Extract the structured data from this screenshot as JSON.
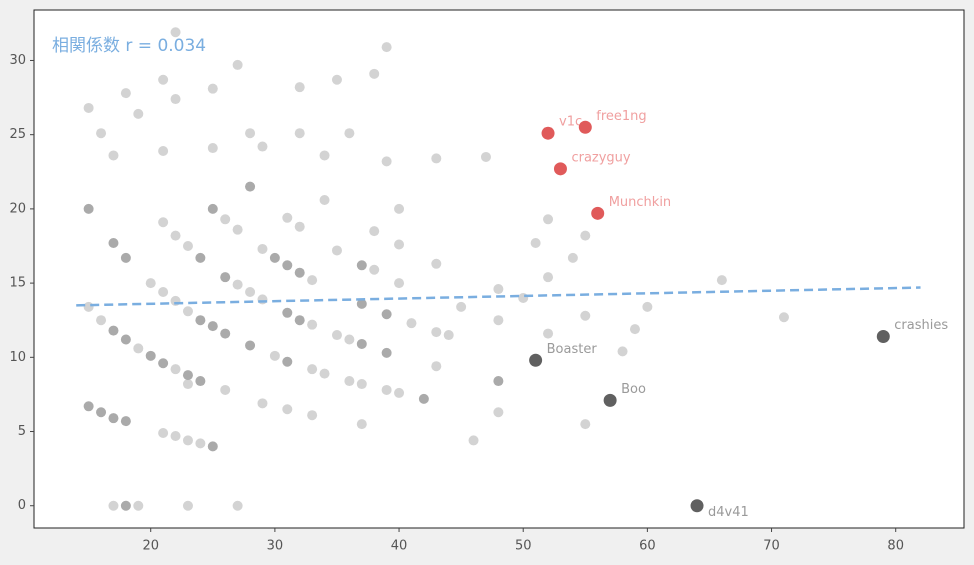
{
  "chart_data": {
    "type": "scatter",
    "annotation": "相関係数 r = 0.034",
    "annotation_color": "#7aaee0",
    "xlim": [
      10.6,
      85.5
    ],
    "ylim": [
      -1.5,
      33.4
    ],
    "xticks": [
      20,
      30,
      40,
      50,
      60,
      70,
      80
    ],
    "yticks": [
      0,
      5,
      10,
      15,
      20,
      25,
      30
    ],
    "series": [
      {
        "color": "#d3d3d3",
        "x": [
          15,
          16,
          17,
          18,
          19,
          22,
          21,
          22,
          25,
          27,
          39,
          38,
          35,
          32,
          21,
          25,
          28,
          29,
          32,
          36,
          34,
          39,
          43,
          47,
          34,
          40,
          21,
          22,
          23,
          26,
          27,
          31,
          32,
          38,
          29,
          35,
          40,
          38,
          43,
          51,
          52,
          55,
          54,
          52,
          20,
          27,
          33,
          40,
          21,
          28,
          22,
          29,
          15,
          23,
          48,
          50,
          45,
          60,
          66,
          16,
          33,
          41,
          48,
          55,
          71,
          59,
          35,
          36,
          43,
          44,
          52,
          19,
          30,
          58,
          33,
          34,
          22,
          43,
          23,
          36,
          37,
          26,
          39,
          40,
          29,
          31,
          33,
          48,
          37,
          55,
          21,
          22,
          23,
          24,
          46,
          17,
          19,
          23,
          27
        ],
        "values": [
          26.8,
          25.1,
          23.6,
          27.8,
          26.4,
          31.9,
          28.7,
          27.4,
          28.1,
          29.7,
          30.9,
          29.1,
          28.7,
          28.2,
          23.9,
          24.1,
          25.1,
          24.2,
          25.1,
          25.1,
          23.6,
          23.2,
          23.4,
          23.5,
          20.6,
          20.0,
          19.1,
          18.2,
          17.5,
          19.3,
          18.6,
          19.4,
          18.8,
          18.5,
          17.3,
          17.2,
          17.6,
          15.9,
          16.3,
          17.7,
          19.3,
          18.2,
          16.7,
          15.4,
          15.0,
          14.9,
          15.2,
          15.0,
          14.4,
          14.4,
          13.8,
          13.9,
          13.4,
          13.1,
          14.6,
          14.0,
          13.4,
          13.4,
          15.2,
          12.5,
          12.2,
          12.3,
          12.5,
          12.8,
          12.7,
          11.9,
          11.5,
          11.2,
          11.7,
          11.5,
          11.6,
          10.6,
          10.1,
          10.4,
          9.2,
          8.9,
          9.2,
          9.4,
          8.2,
          8.4,
          8.2,
          7.8,
          7.8,
          7.6,
          6.9,
          6.5,
          6.1,
          6.3,
          5.5,
          5.5,
          4.9,
          4.7,
          4.4,
          4.2,
          4.4,
          0,
          0,
          0,
          0
        ]
      },
      {
        "color": "#aaaaaa",
        "x": [
          15,
          25,
          28,
          17,
          18,
          24,
          30,
          31,
          37,
          32,
          26,
          37,
          31,
          32,
          39,
          24,
          25,
          17,
          26,
          18,
          28,
          37,
          39,
          20,
          21,
          31,
          23,
          24,
          48,
          42,
          15,
          16,
          17,
          18,
          25,
          18
        ],
        "values": [
          20.0,
          20.0,
          21.5,
          17.7,
          16.7,
          16.7,
          16.7,
          16.2,
          16.2,
          15.7,
          15.4,
          13.6,
          13.0,
          12.5,
          12.9,
          12.5,
          12.1,
          11.8,
          11.6,
          11.2,
          10.8,
          10.9,
          10.3,
          10.1,
          9.6,
          9.7,
          8.8,
          8.4,
          8.4,
          7.2,
          6.7,
          6.3,
          5.9,
          5.7,
          4.0,
          0
        ]
      },
      {
        "color": "#e05a5a",
        "label_color": "#f0a0a0",
        "x": [
          52,
          55,
          53,
          56
        ],
        "values": [
          25.1,
          25.5,
          22.7,
          19.7
        ],
        "labels": [
          "v1c",
          "free1ng",
          "crazyguy",
          "Munchkin"
        ]
      },
      {
        "color": "#606060",
        "label_color": "#9a9a9a",
        "x": [
          51,
          57,
          64,
          79
        ],
        "values": [
          9.8,
          7.1,
          0,
          11.4
        ],
        "labels": [
          "Boaster",
          "Boo",
          "d4v41",
          "crashies"
        ]
      }
    ],
    "trend": {
      "color": "#7aaee0",
      "x": [
        14,
        82
      ],
      "values": [
        13.5,
        14.7
      ]
    }
  }
}
